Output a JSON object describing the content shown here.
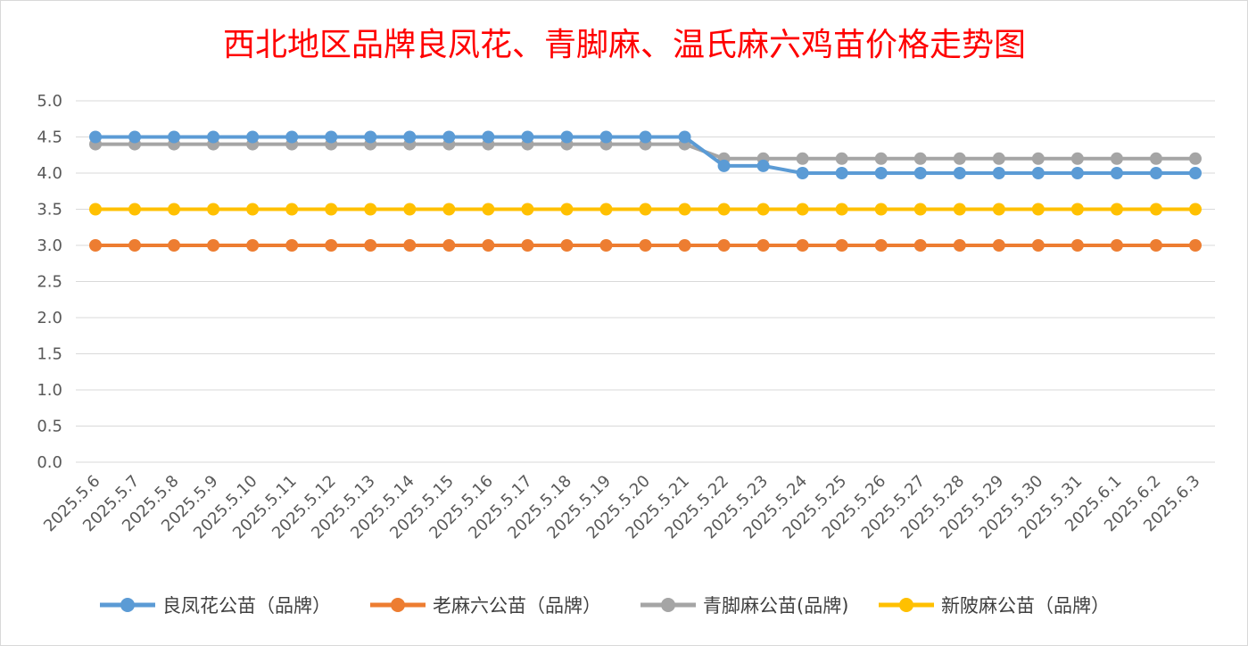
{
  "chart_data": {
    "type": "line",
    "title": "西北地区品牌良凤花、青脚麻、温氏麻六鸡苗价格走势图",
    "xlabel": "",
    "ylabel": "",
    "ylim": [
      0,
      5
    ],
    "ytick_step": 0.5,
    "grid": true,
    "legend_position": "bottom",
    "categories": [
      "2025.5.6",
      "2025.5.7",
      "2025.5.8",
      "2025.5.9",
      "2025.5.10",
      "2025.5.11",
      "2025.5.12",
      "2025.5.13",
      "2025.5.14",
      "2025.5.15",
      "2025.5.16",
      "2025.5.17",
      "2025.5.18",
      "2025.5.19",
      "2025.5.20",
      "2025.5.21",
      "2025.5.22",
      "2025.5.23",
      "2025.5.24",
      "2025.5.25",
      "2025.5.26",
      "2025.5.27",
      "2025.5.28",
      "2025.5.29",
      "2025.5.30",
      "2025.5.31",
      "2025.6.1",
      "2025.6.2",
      "2025.6.3"
    ],
    "series": [
      {
        "name": "良凤花公苗（品牌）",
        "color": "#5b9bd5",
        "values": [
          4.5,
          4.5,
          4.5,
          4.5,
          4.5,
          4.5,
          4.5,
          4.5,
          4.5,
          4.5,
          4.5,
          4.5,
          4.5,
          4.5,
          4.5,
          4.5,
          4.1,
          4.1,
          4.0,
          4.0,
          4.0,
          4.0,
          4.0,
          4.0,
          4.0,
          4.0,
          4.0,
          4.0,
          4.0
        ]
      },
      {
        "name": "老麻六公苗（品牌）",
        "color": "#ed7d31",
        "values": [
          3.0,
          3.0,
          3.0,
          3.0,
          3.0,
          3.0,
          3.0,
          3.0,
          3.0,
          3.0,
          3.0,
          3.0,
          3.0,
          3.0,
          3.0,
          3.0,
          3.0,
          3.0,
          3.0,
          3.0,
          3.0,
          3.0,
          3.0,
          3.0,
          3.0,
          3.0,
          3.0,
          3.0,
          3.0
        ]
      },
      {
        "name": "青脚麻公苗(品牌)",
        "color": "#a5a5a5",
        "values": [
          4.4,
          4.4,
          4.4,
          4.4,
          4.4,
          4.4,
          4.4,
          4.4,
          4.4,
          4.4,
          4.4,
          4.4,
          4.4,
          4.4,
          4.4,
          4.4,
          4.2,
          4.2,
          4.2,
          4.2,
          4.2,
          4.2,
          4.2,
          4.2,
          4.2,
          4.2,
          4.2,
          4.2,
          4.2
        ]
      },
      {
        "name": "新陂麻公苗（品牌）",
        "color": "#ffc000",
        "values": [
          3.5,
          3.5,
          3.5,
          3.5,
          3.5,
          3.5,
          3.5,
          3.5,
          3.5,
          3.5,
          3.5,
          3.5,
          3.5,
          3.5,
          3.5,
          3.5,
          3.5,
          3.5,
          3.5,
          3.5,
          3.5,
          3.5,
          3.5,
          3.5,
          3.5,
          3.5,
          3.5,
          3.5,
          3.5
        ]
      }
    ]
  }
}
